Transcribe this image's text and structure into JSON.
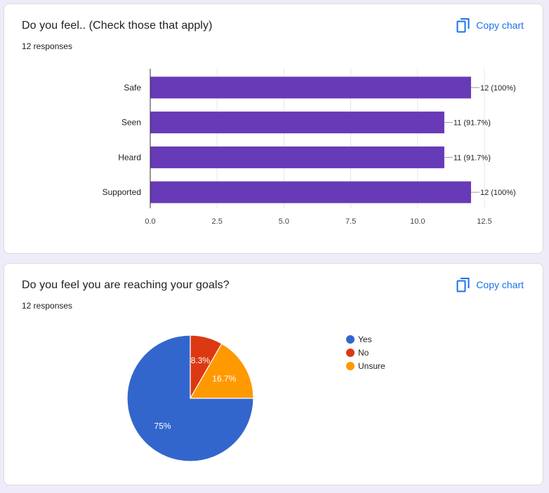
{
  "colors": {
    "background": "#f0ebf8",
    "accent": "#1a73e8",
    "bar": "#673ab7",
    "pie": [
      "#3366cc",
      "#dc3912",
      "#ff9900"
    ]
  },
  "cards": [
    {
      "title": "Do you feel.. (Check those that apply)",
      "subtitle": "12 responses",
      "copy_label": "Copy chart",
      "copy_icon": "copy-icon"
    },
    {
      "title": "Do you feel you are reaching your goals?",
      "subtitle": "12 responses",
      "copy_label": "Copy chart",
      "copy_icon": "copy-icon"
    }
  ],
  "chart_data": [
    {
      "type": "bar",
      "orientation": "horizontal",
      "categories": [
        "Safe",
        "Seen",
        "Heard",
        "Supported"
      ],
      "values": [
        12,
        11,
        11,
        12
      ],
      "data_labels": [
        "12 (100%)",
        "11 (91.7%)",
        "11 (91.7%)",
        "12 (100%)"
      ],
      "x_ticks": [
        "0.0",
        "2.5",
        "5.0",
        "7.5",
        "10.0",
        "12.5"
      ],
      "xlim": [
        0,
        12.5
      ],
      "grid": true,
      "legend": "none",
      "color": "#673ab7"
    },
    {
      "type": "pie",
      "categories": [
        "Yes",
        "No",
        "Unsure"
      ],
      "values": [
        75,
        8.3,
        16.7
      ],
      "slice_labels": [
        "75%",
        "8.3%",
        "16.7%"
      ],
      "colors": [
        "#3366cc",
        "#dc3912",
        "#ff9900"
      ],
      "legend": "right"
    }
  ]
}
